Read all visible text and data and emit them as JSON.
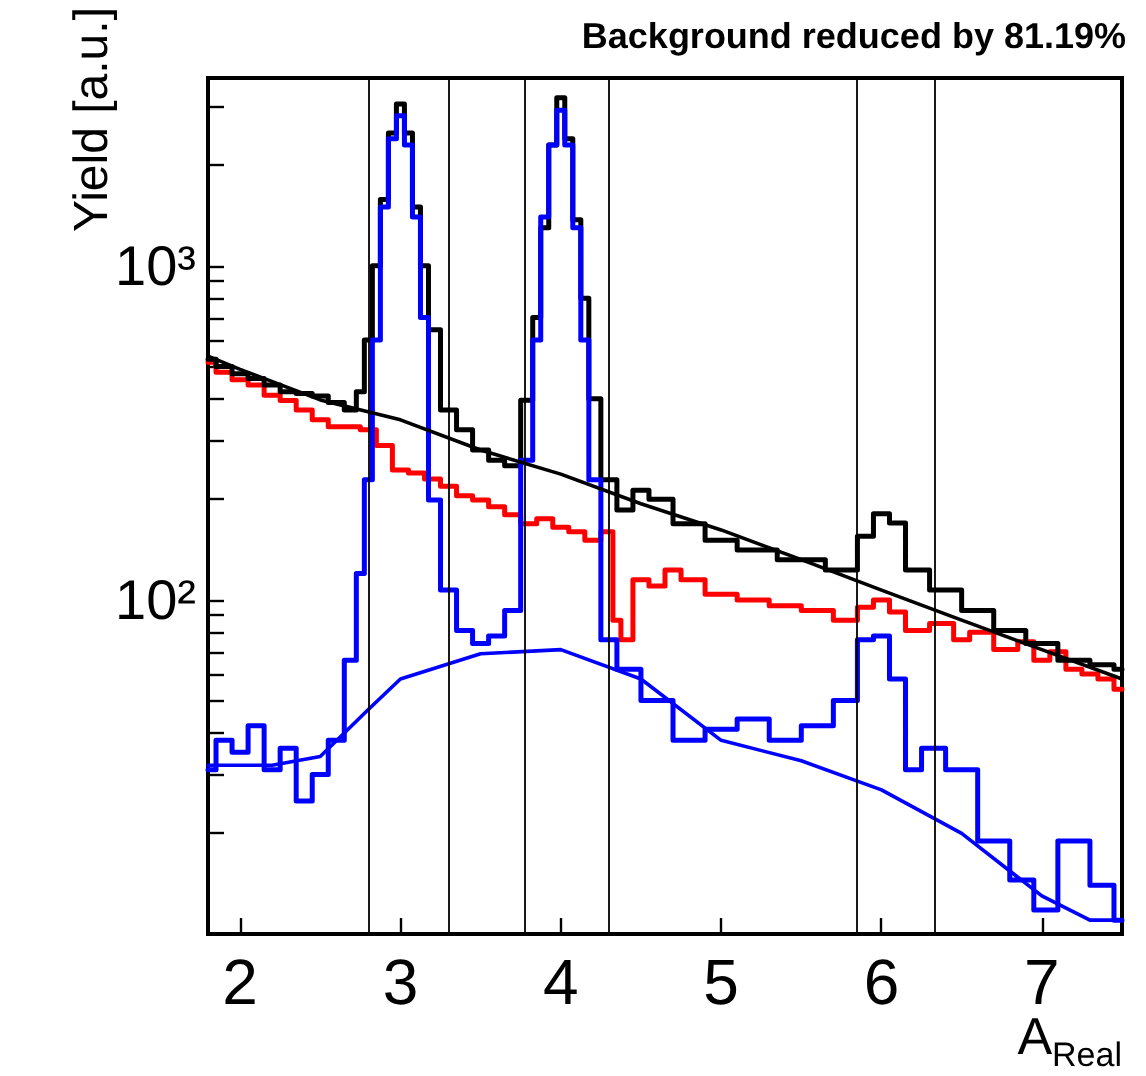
{
  "chart_data": {
    "type": "step",
    "title": "Background reduced by 81.19%",
    "xlabel": "A$_{Real}$",
    "ylabel": "Yield [a.u.]",
    "xlim": [
      1.8,
      7.5
    ],
    "xticks": [
      2,
      3,
      4,
      5,
      6,
      7
    ],
    "ylim": [
      10,
      3650
    ],
    "yticks": [
      {
        "value": 20,
        "label": null
      },
      {
        "value": 30,
        "label": null
      },
      {
        "value": 40,
        "label": null
      },
      {
        "value": 50,
        "label": null
      },
      {
        "value": 60,
        "label": null
      },
      {
        "value": 70,
        "label": null
      },
      {
        "value": 80,
        "label": null
      },
      {
        "value": 90,
        "label": null
      },
      {
        "value": 100,
        "label": "10²"
      },
      {
        "value": 200,
        "label": null
      },
      {
        "value": 300,
        "label": null
      },
      {
        "value": 400,
        "label": null
      },
      {
        "value": 500,
        "label": null
      },
      {
        "value": 600,
        "label": null
      },
      {
        "value": 700,
        "label": null
      },
      {
        "value": 800,
        "label": null
      },
      {
        "value": 900,
        "label": null
      },
      {
        "value": 1000,
        "label": "10³"
      },
      {
        "value": 2000,
        "label": null
      },
      {
        "value": 3000,
        "label": null
      }
    ],
    "log": "y",
    "grid": false,
    "marker": "none",
    "line_style": "solid",
    "ref_lines": [
      {
        "axis": "x",
        "value": 2.8,
        "color": "#000000"
      },
      {
        "axis": "x",
        "value": 3.3,
        "color": "#000000"
      },
      {
        "axis": "x",
        "value": 3.77,
        "color": "#000000"
      },
      {
        "axis": "x",
        "value": 4.3,
        "color": "#000000"
      },
      {
        "axis": "x",
        "value": 5.85,
        "color": "#000000"
      },
      {
        "axis": "x",
        "value": 6.33,
        "color": "#000000"
      }
    ],
    "series": [
      {
        "color": "#ff0000",
        "x": [
          1.8,
          1.9,
          2.0,
          2.1,
          2.2,
          2.3,
          2.4,
          2.5,
          2.6,
          2.7,
          2.8,
          2.9,
          3.0,
          3.1,
          3.2,
          3.3,
          3.4,
          3.5,
          3.6,
          3.7,
          3.8,
          3.9,
          4.0,
          4.1,
          4.2,
          4.3,
          4.35,
          4.4,
          4.5,
          4.6,
          4.7,
          4.8,
          5.0,
          5.2,
          5.4,
          5.6,
          5.8,
          5.9,
          6.0,
          6.1,
          6.2,
          6.4,
          6.5,
          6.6,
          6.8,
          6.9,
          7.0,
          7.1,
          7.2,
          7.3,
          7.4,
          7.5
        ],
        "values": [
          515,
          480,
          456,
          440,
          410,
          395,
          370,
          346,
          330,
          330,
          323,
          290,
          245,
          240,
          230,
          219,
          205,
          199,
          190,
          180,
          169,
          175,
          165,
          160,
          151,
          160,
          87,
          76,
          115,
          110,
          123,
          115,
          104,
          100,
          96,
          93,
          87,
          95,
          100,
          92,
          81,
          85,
          76,
          80,
          71,
          75,
          66,
          70,
          62,
          60,
          58,
          54
        ]
      },
      {
        "color": "#000000",
        "x": [
          1.8,
          1.9,
          2.0,
          2.1,
          2.2,
          2.3,
          2.4,
          2.5,
          2.6,
          2.7,
          2.75,
          2.8,
          2.85,
          2.9,
          2.95,
          3.0,
          3.05,
          3.1,
          3.15,
          3.2,
          3.3,
          3.4,
          3.5,
          3.6,
          3.7,
          3.8,
          3.85,
          3.9,
          3.95,
          4.0,
          4.05,
          4.1,
          4.15,
          4.2,
          4.3,
          4.4,
          4.5,
          4.6,
          4.8,
          5.0,
          5.2,
          5.5,
          5.8,
          5.9,
          6.0,
          6.1,
          6.2,
          6.4,
          6.6,
          6.8,
          7.0,
          7.2,
          7.4,
          7.5
        ],
        "values": [
          525,
          500,
          475,
          460,
          440,
          420,
          415,
          408,
          390,
          370,
          420,
          600,
          1000,
          1580,
          2500,
          3050,
          2500,
          1500,
          1000,
          644,
          370,
          323,
          281,
          262,
          252,
          396,
          700,
          1300,
          2300,
          3185,
          2400,
          1375,
          800,
          400,
          229,
          186,
          213,
          200,
          169,
          151,
          141,
          132,
          123,
          155,
          181,
          170,
          123,
          107,
          93,
          81,
          74,
          66,
          64,
          62
        ]
      },
      {
        "color": "#0000ff",
        "x": [
          1.8,
          1.9,
          2.0,
          2.1,
          2.2,
          2.3,
          2.4,
          2.5,
          2.6,
          2.7,
          2.75,
          2.8,
          2.85,
          2.9,
          2.95,
          3.0,
          3.05,
          3.1,
          3.15,
          3.2,
          3.3,
          3.4,
          3.5,
          3.6,
          3.7,
          3.8,
          3.85,
          3.9,
          3.95,
          4.0,
          4.05,
          4.1,
          4.15,
          4.2,
          4.3,
          4.4,
          4.6,
          4.8,
          5.0,
          5.2,
          5.4,
          5.6,
          5.8,
          5.9,
          6.0,
          6.1,
          6.2,
          6.3,
          6.5,
          6.7,
          6.9,
          7.0,
          7.2,
          7.4,
          7.5
        ],
        "values": [
          31,
          38,
          35,
          42,
          31,
          36,
          25,
          30,
          38,
          66,
          120,
          229,
          600,
          1500,
          2400,
          2813,
          2300,
          1400,
          700,
          199,
          107,
          81,
          74,
          78,
          93,
          262,
          600,
          1400,
          2300,
          2925,
          2300,
          1300,
          600,
          229,
          76,
          62,
          50,
          38,
          41,
          44,
          38,
          42,
          50,
          76,
          78,
          58,
          31,
          36,
          31,
          19,
          14.5,
          11.8,
          19,
          14,
          11
        ]
      },
      {
        "type": "line",
        "color": "#000000",
        "x": [
          1.8,
          2.0,
          2.5,
          3.0,
          3.5,
          4.0,
          4.5,
          5.0,
          5.5,
          6.0,
          6.5,
          7.0,
          7.5
        ],
        "values": [
          537,
          490,
          397,
          346,
          281,
          238,
          194,
          162,
          132,
          107,
          87,
          71,
          58
        ]
      },
      {
        "type": "line",
        "color": "#0000ff",
        "x": [
          1.8,
          2.2,
          2.5,
          2.8,
          3.0,
          3.5,
          4.0,
          4.5,
          5.0,
          5.5,
          6.0,
          6.5,
          7.0,
          7.3,
          7.5
        ],
        "values": [
          32,
          32,
          34,
          47,
          58,
          69,
          71,
          58,
          38,
          33,
          27,
          20,
          13,
          11,
          11
        ]
      }
    ]
  }
}
